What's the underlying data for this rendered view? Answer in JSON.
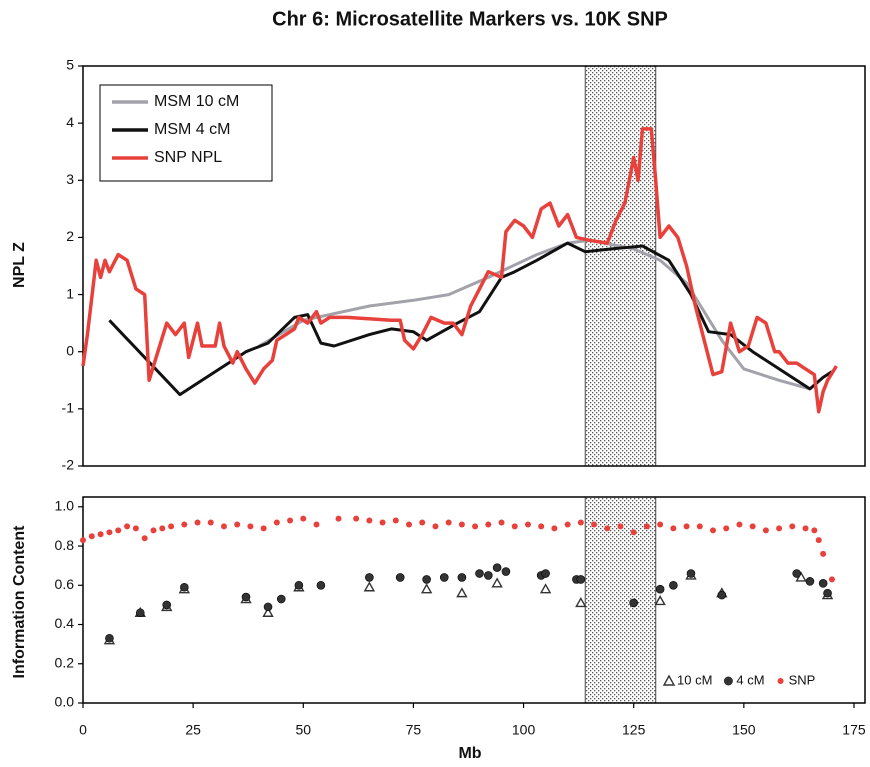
{
  "chart_data": [
    {
      "type": "line",
      "title": "Chr 6: Microsatellite Markers vs. 10K SNP",
      "ylabel": "NPL Z",
      "xlim": [
        0,
        177.5
      ],
      "ylim": [
        -2,
        5
      ],
      "yticks": [
        -2,
        -1,
        0,
        1,
        2,
        3,
        4,
        5
      ],
      "highlight": [
        114,
        130
      ],
      "legend": "upper left",
      "series": [
        {
          "name": "MSM 10 cM",
          "color": "#a2a2aa",
          "x": [
            40,
            50,
            65,
            75,
            83,
            92,
            103,
            110,
            115,
            125,
            131,
            137,
            145,
            150,
            158,
            165
          ],
          "values": [
            0.1,
            0.55,
            0.8,
            0.9,
            1.0,
            1.3,
            1.7,
            1.9,
            1.95,
            1.8,
            1.6,
            1.2,
            0.2,
            -0.3,
            -0.5,
            -0.65
          ]
        },
        {
          "name": "MSM 4 cM",
          "color": "#111111",
          "x": [
            6,
            22,
            37,
            42,
            48,
            51,
            54,
            57,
            65,
            70,
            75,
            78,
            85,
            90,
            95,
            98,
            103,
            110,
            114,
            120,
            127,
            133,
            138,
            142,
            147,
            152,
            158,
            165,
            168,
            170
          ],
          "values": [
            0.55,
            -0.75,
            0,
            0.15,
            0.6,
            0.65,
            0.15,
            0.1,
            0.3,
            0.4,
            0.35,
            0.2,
            0.5,
            0.7,
            1.3,
            1.4,
            1.6,
            1.9,
            1.75,
            1.8,
            1.85,
            1.6,
            1.0,
            0.35,
            0.3,
            0,
            -0.3,
            -0.65,
            -0.45,
            -0.35
          ]
        },
        {
          "name": "SNP NPL",
          "color": "#e8413c",
          "x": [
            0,
            1,
            3,
            4,
            5,
            6,
            8,
            10,
            12,
            14,
            15,
            17,
            19,
            21,
            23,
            24,
            26,
            27,
            30,
            31,
            32,
            34,
            35,
            37,
            39,
            41,
            43,
            44,
            46,
            48,
            49,
            51,
            53,
            54,
            56,
            60,
            70,
            72,
            73,
            75,
            77,
            79,
            82,
            84,
            86,
            88,
            90,
            92,
            95,
            96,
            98,
            100,
            102,
            104,
            106,
            108,
            110,
            112,
            115,
            119,
            121,
            123,
            125,
            126,
            127,
            129,
            130,
            131,
            133,
            135,
            137,
            139,
            141,
            143,
            145,
            147,
            149,
            151,
            153,
            155,
            157,
            158,
            160,
            162,
            164,
            166,
            167,
            168,
            169,
            171
          ],
          "values": [
            -0.25,
            0.3,
            1.6,
            1.3,
            1.6,
            1.4,
            1.7,
            1.6,
            1.1,
            1.0,
            -0.5,
            0,
            0.5,
            0.3,
            0.5,
            -0.1,
            0.5,
            0.1,
            0.1,
            0.5,
            0.1,
            -0.2,
            0,
            -0.3,
            -0.55,
            -0.3,
            -0.15,
            0.2,
            0.3,
            0.4,
            0.6,
            0.5,
            0.7,
            0.5,
            0.6,
            0.6,
            0.55,
            0.55,
            0.2,
            0.05,
            0.3,
            0.6,
            0.5,
            0.5,
            0.3,
            0.8,
            1.1,
            1.4,
            1.3,
            2.1,
            2.3,
            2.2,
            2.0,
            2.5,
            2.6,
            2.2,
            2.4,
            2.0,
            1.95,
            1.9,
            2.3,
            2.6,
            3.4,
            3.0,
            3.9,
            3.9,
            3.0,
            2.0,
            2.2,
            2.0,
            1.5,
            0.8,
            0.2,
            -0.4,
            -0.35,
            0.5,
            0,
            0.1,
            0.6,
            0.5,
            0,
            0,
            -0.2,
            -0.2,
            -0.3,
            -0.4,
            -1.05,
            -0.7,
            -0.5,
            -0.25
          ]
        }
      ]
    },
    {
      "type": "scatter",
      "xlabel": "Mb",
      "ylabel": "Information Content",
      "xlim": [
        0,
        177.5
      ],
      "xticks": [
        0,
        25,
        50,
        75,
        100,
        125,
        150,
        175
      ],
      "ylim": [
        0,
        1.05
      ],
      "yticks": [
        {
          "value": 0,
          "label": "0.0"
        },
        {
          "value": 0.2,
          "label": "0.2"
        },
        {
          "value": 0.4,
          "label": "0.4"
        },
        {
          "value": 0.6,
          "label": "0.6"
        },
        {
          "value": 0.8,
          "label": "0.8"
        },
        {
          "value": 1,
          "label": "1.0"
        }
      ],
      "highlight": [
        114,
        130
      ],
      "legend": "lower right",
      "series": [
        {
          "name": "10 cM",
          "color": "#333333",
          "marker": "triangle",
          "x": [
            6,
            13,
            19,
            23,
            37,
            42,
            49,
            65,
            78,
            86,
            94,
            105,
            113,
            131,
            138,
            145,
            163,
            169
          ],
          "values": [
            0.32,
            0.46,
            0.49,
            0.58,
            0.53,
            0.46,
            0.59,
            0.59,
            0.58,
            0.56,
            0.61,
            0.58,
            0.51,
            0.52,
            0.65,
            0.56,
            0.64,
            0.55
          ]
        },
        {
          "name": "4 cM",
          "color": "#333333",
          "marker": "circle",
          "x": [
            6,
            13,
            19,
            23,
            37,
            42,
            45,
            49,
            54,
            65,
            72,
            78,
            82,
            86,
            90,
            92,
            94,
            96,
            104,
            105,
            112,
            113,
            125,
            131,
            134,
            138,
            145,
            162,
            165,
            168,
            169
          ],
          "values": [
            0.33,
            0.46,
            0.5,
            0.59,
            0.54,
            0.49,
            0.53,
            0.6,
            0.6,
            0.64,
            0.64,
            0.63,
            0.64,
            0.64,
            0.66,
            0.65,
            0.69,
            0.67,
            0.65,
            0.66,
            0.63,
            0.63,
            0.51,
            0.58,
            0.6,
            0.66,
            0.55,
            0.66,
            0.62,
            0.61,
            0.56
          ]
        },
        {
          "name": "SNP",
          "color": "#e8413c",
          "marker": "dot",
          "x": [
            0,
            2,
            4,
            6,
            8,
            10,
            12,
            14,
            16,
            18,
            20,
            23,
            26,
            29,
            32,
            35,
            38,
            41,
            44,
            47,
            50,
            53,
            58,
            62,
            65,
            68,
            71,
            74,
            77,
            80,
            83,
            86,
            89,
            92,
            95,
            98,
            101,
            104,
            107,
            110,
            113,
            116,
            119,
            122,
            125,
            128,
            131,
            134,
            137,
            140,
            143,
            146,
            149,
            152,
            155,
            158,
            161,
            164,
            166,
            167,
            168,
            170
          ],
          "values": [
            0.83,
            0.85,
            0.86,
            0.87,
            0.88,
            0.9,
            0.89,
            0.84,
            0.88,
            0.89,
            0.9,
            0.91,
            0.92,
            0.92,
            0.9,
            0.91,
            0.9,
            0.89,
            0.92,
            0.93,
            0.94,
            0.91,
            0.94,
            0.94,
            0.93,
            0.92,
            0.93,
            0.91,
            0.92,
            0.9,
            0.92,
            0.91,
            0.9,
            0.91,
            0.92,
            0.9,
            0.91,
            0.9,
            0.89,
            0.91,
            0.92,
            0.91,
            0.89,
            0.9,
            0.87,
            0.9,
            0.91,
            0.89,
            0.9,
            0.9,
            0.88,
            0.89,
            0.91,
            0.9,
            0.88,
            0.89,
            0.9,
            0.89,
            0.88,
            0.83,
            0.76,
            0.63
          ]
        }
      ]
    }
  ]
}
